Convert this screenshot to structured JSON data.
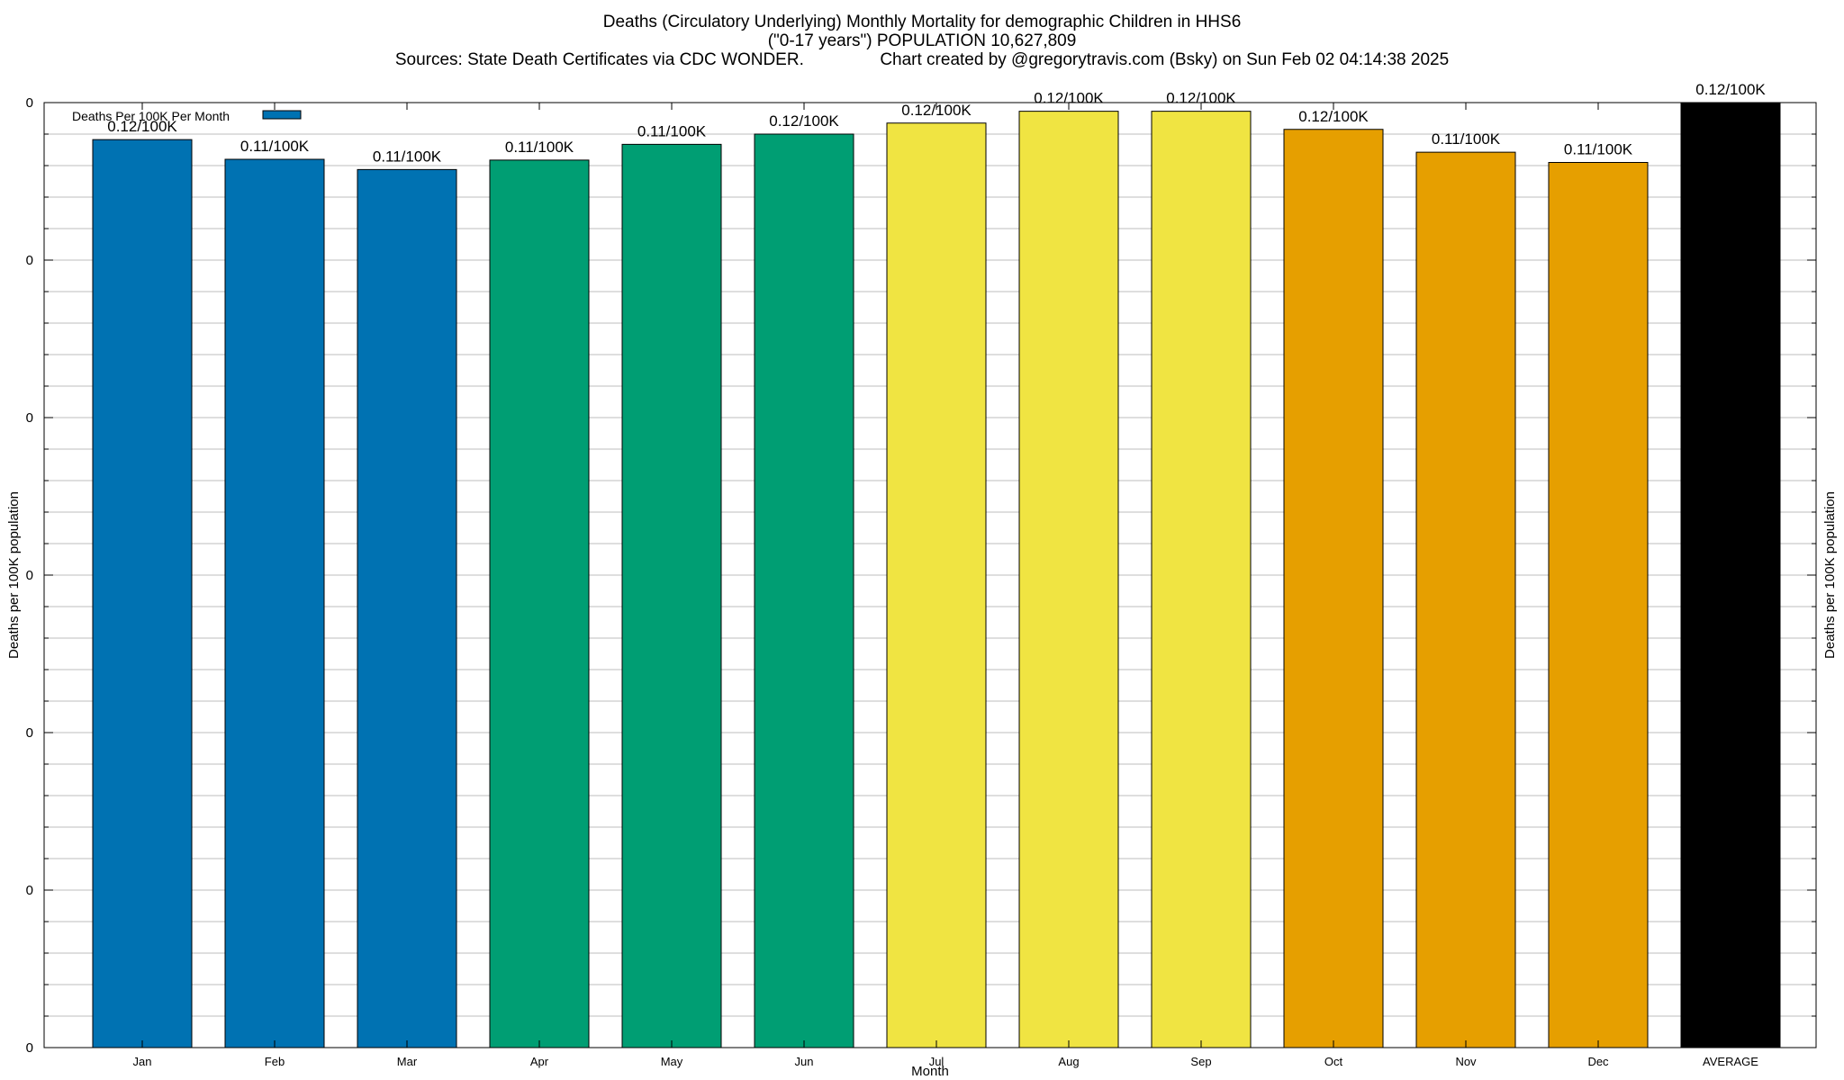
{
  "chart_data": {
    "type": "bar",
    "title_lines": [
      "Deaths (Circulatory Underlying) Monthly Mortality for demographic Children in HHS6",
      "(\"0-17 years\") POPULATION 10,627,809",
      "Sources: State Death Certificates via CDC WONDER.                Chart created by @gregorytravis.com (Bsky) on Sun Feb 02 04:14:38 2025"
    ],
    "xlabel": "Month",
    "ylabel": "Deaths per 100K population",
    "y2label": "Deaths per 100K population",
    "ytick_labels": [
      "0",
      "0",
      "0",
      "0",
      "0",
      "0",
      "0"
    ],
    "ylim": [
      0,
      0.12
    ],
    "legend": {
      "label": "Deaths Per 100K Per Month",
      "color": "#0072b2",
      "position": "top-left"
    },
    "grid": true,
    "categories": [
      "Jan",
      "Feb",
      "Mar",
      "Apr",
      "May",
      "Jun",
      "Jul",
      "Aug",
      "Sep",
      "Oct",
      "Nov",
      "Dec",
      "AVERAGE"
    ],
    "values": [
      0.1153,
      0.1128,
      0.1115,
      0.1127,
      0.1147,
      0.116,
      0.1174,
      0.1189,
      0.1189,
      0.1166,
      0.1137,
      0.1124,
      0.12
    ],
    "data_labels": [
      "0.12/100K",
      "0.11/100K",
      "0.11/100K",
      "0.11/100K",
      "0.11/100K",
      "0.12/100K",
      "0.12/100K",
      "0.12/100K",
      "0.12/100K",
      "0.12/100K",
      "0.11/100K",
      "0.11/100K",
      "0.12/100K"
    ],
    "colors": [
      "#0072b2",
      "#0072b2",
      "#0072b2",
      "#009e73",
      "#009e73",
      "#009e73",
      "#f0e442",
      "#f0e442",
      "#f0e442",
      "#e69f00",
      "#e69f00",
      "#e69f00",
      "#000000"
    ]
  }
}
